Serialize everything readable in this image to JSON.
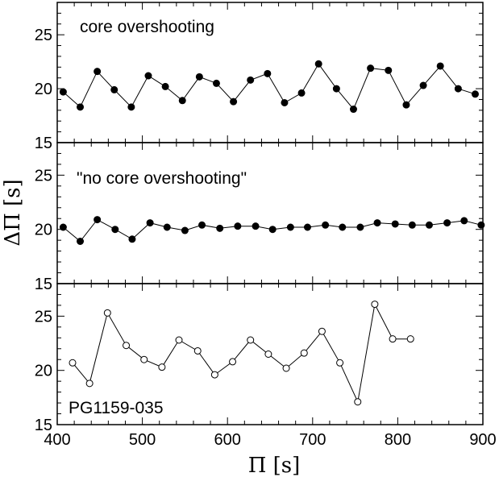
{
  "chart_data": {
    "type": "line",
    "xlabel": "Π [s]",
    "ylabel": "ΔΠ [s]",
    "xlim": [
      400,
      900
    ],
    "x_ticks": [
      400,
      500,
      600,
      700,
      800,
      900
    ],
    "x_tick_labels": [
      "400",
      "500",
      "600",
      "700",
      "800",
      "900"
    ],
    "panels": [
      {
        "label": "core overshooting",
        "ylim": [
          15,
          28
        ],
        "y_ticks": [
          15,
          20,
          25
        ],
        "y_tick_labels": [
          "15",
          "20",
          "25"
        ],
        "marker": "filled",
        "series": [
          {
            "x": [
              407,
              427,
              447,
              467,
              487,
              507,
              527,
              547,
              567,
              587,
              607,
              627,
              647,
              667,
              687,
              707,
              728,
              748,
              768,
              789,
              810,
              830,
              850,
              871,
              891
            ],
            "y": [
              19.7,
              18.3,
              21.6,
              19.9,
              18.3,
              21.2,
              20.2,
              18.9,
              21.1,
              20.5,
              18.8,
              20.8,
              21.4,
              18.7,
              19.6,
              22.3,
              20.0,
              18.1,
              21.9,
              21.7,
              18.5,
              20.3,
              22.1,
              20.0,
              19.5
            ]
          }
        ]
      },
      {
        "label": "\"no core overshooting\"",
        "ylim": [
          15,
          28
        ],
        "y_ticks": [
          15,
          20,
          25
        ],
        "y_tick_labels": [
          "15",
          "20",
          "25"
        ],
        "marker": "filled",
        "series": [
          {
            "x": [
              407,
              427,
              447,
              468,
              488,
              509,
              529,
              550,
              570,
              591,
              612,
              633,
              653,
              674,
              694,
              715,
              735,
              756,
              776,
              797,
              817,
              837,
              858,
              878,
              898
            ],
            "y": [
              20.2,
              18.9,
              20.9,
              20.0,
              19.1,
              20.6,
              20.2,
              19.9,
              20.4,
              20.1,
              20.3,
              20.3,
              20.0,
              20.2,
              20.2,
              20.4,
              20.2,
              20.2,
              20.6,
              20.5,
              20.4,
              20.4,
              20.6,
              20.8,
              20.4
            ]
          }
        ]
      },
      {
        "label": "PG1159-035",
        "ylim": [
          15,
          28
        ],
        "y_ticks": [
          15,
          20,
          25
        ],
        "y_tick_labels": [
          "15",
          "20",
          "25"
        ],
        "marker": "open",
        "series": [
          {
            "x": [
              418,
              438,
              459,
              481,
              502,
              523,
              543,
              565,
              585,
              606,
              627,
              648,
              669,
              690,
              711,
              732,
              753,
              773,
              794,
              815
            ],
            "y": [
              20.7,
              18.8,
              25.3,
              22.3,
              21.0,
              20.3,
              22.8,
              21.8,
              19.6,
              20.8,
              22.8,
              21.5,
              20.2,
              21.6,
              23.6,
              20.7,
              17.1,
              26.1,
              22.9,
              22.9
            ]
          }
        ]
      }
    ]
  }
}
